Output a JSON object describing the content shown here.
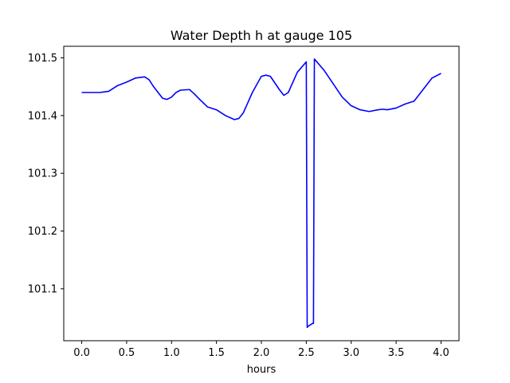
{
  "chart_data": {
    "type": "line",
    "title": "Water Depth h at gauge 105",
    "xlabel": "hours",
    "ylabel": "",
    "xlim": [
      -0.2,
      4.2
    ],
    "ylim": [
      101.01,
      101.52
    ],
    "xticks": [
      0.0,
      0.5,
      1.0,
      1.5,
      2.0,
      2.5,
      3.0,
      3.5,
      4.0
    ],
    "xtick_labels": [
      "0.0",
      "0.5",
      "1.0",
      "1.5",
      "2.0",
      "2.5",
      "3.0",
      "3.5",
      "4.0"
    ],
    "yticks": [
      101.1,
      101.2,
      101.3,
      101.4,
      101.5
    ],
    "ytick_labels": [
      "101.1",
      "101.2",
      "101.3",
      "101.4",
      "101.5"
    ],
    "grid": false,
    "series": [
      {
        "color": "#0000ff",
        "x": [
          0.0,
          0.1,
          0.2,
          0.3,
          0.4,
          0.5,
          0.6,
          0.7,
          0.75,
          0.8,
          0.9,
          0.95,
          1.0,
          1.05,
          1.1,
          1.2,
          1.25,
          1.3,
          1.4,
          1.5,
          1.6,
          1.7,
          1.75,
          1.8,
          1.9,
          2.0,
          2.05,
          2.1,
          2.2,
          2.25,
          2.3,
          2.4,
          2.5,
          2.51,
          2.52,
          2.57,
          2.58,
          2.59,
          2.7,
          2.8,
          2.9,
          3.0,
          3.1,
          3.2,
          3.3,
          3.35,
          3.4,
          3.5,
          3.6,
          3.7,
          3.8,
          3.9,
          4.0
        ],
        "y": [
          101.44,
          101.44,
          101.44,
          101.442,
          101.452,
          101.458,
          101.465,
          101.467,
          101.462,
          101.45,
          101.43,
          101.428,
          101.432,
          101.44,
          101.444,
          101.445,
          101.438,
          101.43,
          101.415,
          101.41,
          101.4,
          101.393,
          101.395,
          101.405,
          101.44,
          101.468,
          101.47,
          101.468,
          101.445,
          101.435,
          101.44,
          101.475,
          101.493,
          101.033,
          101.035,
          101.04,
          101.04,
          101.498,
          101.478,
          101.455,
          101.432,
          101.417,
          101.41,
          101.407,
          101.41,
          101.411,
          101.41,
          101.413,
          101.42,
          101.425,
          101.445,
          101.465,
          101.473
        ]
      }
    ]
  }
}
